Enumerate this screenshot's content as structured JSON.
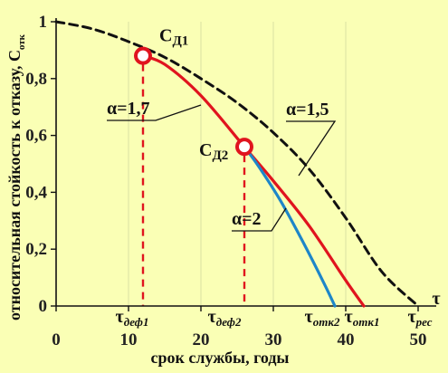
{
  "chart_data": {
    "type": "line",
    "xlabel": "срок службы, годы",
    "ylabel": "относительная стойкость к отказу, С",
    "ylabel_sub": "отк",
    "xlim": [
      0,
      50
    ],
    "ylim": [
      0,
      1
    ],
    "x_ticks": [
      "0",
      "10",
      "20",
      "30",
      "40",
      "50"
    ],
    "y_ticks": [
      "0",
      "0,2",
      "0,4",
      "0,6",
      "0,8",
      "1"
    ],
    "x_axis_end_label": "τ",
    "colors": {
      "background": "#FAFFB5",
      "red": "#E0141E",
      "blue": "#1E86C8",
      "black": "#111111"
    },
    "series": [
      {
        "name": "α=1,5",
        "style": "dashed",
        "color": "#111111",
        "x": [
          0,
          5,
          10,
          15,
          20,
          25,
          30,
          35,
          40,
          45,
          50
        ],
        "y": [
          1.0,
          0.975,
          0.93,
          0.875,
          0.8,
          0.715,
          0.61,
          0.48,
          0.31,
          0.12,
          0.0
        ]
      },
      {
        "name": "α=1,7",
        "style": "solid",
        "color": "#E0141E",
        "x": [
          12,
          15,
          20,
          26,
          30,
          35,
          40,
          42.5
        ],
        "y": [
          0.88,
          0.85,
          0.74,
          0.56,
          0.44,
          0.28,
          0.09,
          0.0
        ]
      },
      {
        "name": "α=2",
        "style": "solid",
        "color": "#1E86C8",
        "x": [
          26,
          28,
          31,
          34,
          37,
          38.5
        ],
        "y": [
          0.56,
          0.49,
          0.37,
          0.23,
          0.08,
          0.0
        ]
      }
    ],
    "points": [
      {
        "label": "С",
        "sub": "Д1",
        "x": 12,
        "y": 0.88
      },
      {
        "label": "С",
        "sub": "Д2",
        "x": 26,
        "y": 0.56
      }
    ],
    "markers": [
      {
        "label": "τ",
        "sub": "деф1",
        "x": 12
      },
      {
        "label": "τ",
        "sub": "деф2",
        "x": 26
      },
      {
        "label": "τ",
        "sub": "отк2",
        "x": 38.5
      },
      {
        "label": "τ",
        "sub": "отк1",
        "x": 42.5
      },
      {
        "label": "τ",
        "sub": "рес",
        "x": 50
      }
    ]
  }
}
